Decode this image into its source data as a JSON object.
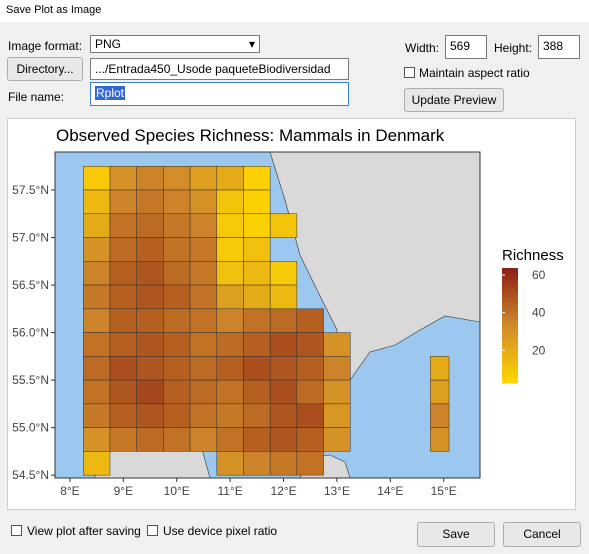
{
  "dialog": {
    "title": "Save Plot as Image",
    "image_format_label": "Image format:",
    "image_format": "PNG",
    "directory_button": "Directory...",
    "directory_path": ".../Entrada450_Usode paqueteBiodiversidad",
    "file_name_label": "File name:",
    "file_name": "Rplot",
    "width_label": "Width:",
    "width": 569,
    "height_label": "Height:",
    "height": 388,
    "maintain_aspect": "Maintain aspect ratio",
    "update_preview": "Update Preview",
    "view_after_saving": "View plot after saving",
    "device_pixel_ratio": "Use device pixel ratio",
    "save": "Save",
    "cancel": "Cancel"
  },
  "chart_data": {
    "type": "grid-map",
    "title": "Observed Species Richness: Mammals in Denmark",
    "legend_title": "Richness",
    "xlim": [
      7.72,
      15.68
    ],
    "ylim": [
      54.47,
      57.9
    ],
    "xticks": [
      {
        "value": 8,
        "label": "8°E"
      },
      {
        "value": 9,
        "label": "9°E"
      },
      {
        "value": 10,
        "label": "10°E"
      },
      {
        "value": 11,
        "label": "11°E"
      },
      {
        "value": 12,
        "label": "12°E"
      },
      {
        "value": 13,
        "label": "13°E"
      },
      {
        "value": 14,
        "label": "14°E"
      },
      {
        "value": 15,
        "label": "15°E"
      }
    ],
    "yticks": [
      {
        "value": 54.5,
        "label": "54.5°N"
      },
      {
        "value": 55,
        "label": "55.0°N"
      },
      {
        "value": 55.5,
        "label": "55.5°N"
      },
      {
        "value": 56,
        "label": "56.0°N"
      },
      {
        "value": 56.5,
        "label": "56.5°N"
      },
      {
        "value": 57,
        "label": "57.0°N"
      },
      {
        "value": 57.5,
        "label": "57.5°N"
      }
    ],
    "clim": [
      2.6,
      63.7
    ],
    "cticks": [
      20,
      40,
      60
    ],
    "colors": [
      "#ffd700",
      "#d08a2a",
      "#8b1e14"
    ],
    "lon_edges": [
      8.25,
      8.75,
      9.25,
      9.75,
      10.25,
      10.75,
      11.25,
      11.75,
      12.25,
      12.75,
      13.25,
      13.75,
      14.25,
      14.75,
      15.1
    ],
    "lat_edges": [
      57.75,
      57.5,
      57.25,
      57.0,
      56.75,
      56.5,
      56.25,
      56.0,
      55.75,
      55.5,
      55.25,
      55.0,
      54.75,
      54.5
    ],
    "values": [
      [
        8,
        30,
        35,
        32,
        25,
        20,
        5,
        null,
        null,
        null,
        null,
        null,
        null,
        null
      ],
      [
        15,
        35,
        38,
        35,
        30,
        10,
        5,
        null,
        null,
        null,
        null,
        null,
        null,
        null
      ],
      [
        20,
        40,
        42,
        38,
        35,
        8,
        5,
        10,
        null,
        null,
        null,
        null,
        null,
        null
      ],
      [
        30,
        42,
        45,
        40,
        38,
        8,
        12,
        null,
        null,
        null,
        null,
        null,
        null,
        null
      ],
      [
        35,
        45,
        48,
        42,
        38,
        12,
        15,
        8,
        null,
        null,
        null,
        null,
        null,
        null
      ],
      [
        38,
        45,
        48,
        45,
        40,
        25,
        20,
        15,
        null,
        null,
        null,
        null,
        null,
        null
      ],
      [
        35,
        45,
        45,
        42,
        40,
        35,
        40,
        42,
        45,
        null,
        null,
        null,
        null,
        null
      ],
      [
        40,
        45,
        48,
        45,
        40,
        42,
        45,
        50,
        48,
        30,
        null,
        null,
        null,
        null
      ],
      [
        42,
        50,
        48,
        45,
        42,
        45,
        50,
        48,
        45,
        35,
        null,
        null,
        null,
        20
      ],
      [
        40,
        48,
        52,
        45,
        42,
        40,
        45,
        50,
        42,
        30,
        null,
        null,
        null,
        25
      ],
      [
        38,
        45,
        48,
        45,
        40,
        38,
        42,
        48,
        50,
        28,
        null,
        null,
        null,
        35
      ],
      [
        30,
        38,
        42,
        40,
        35,
        40,
        45,
        48,
        45,
        30,
        null,
        null,
        null,
        30
      ],
      [
        15,
        null,
        null,
        null,
        null,
        30,
        35,
        38,
        40,
        null,
        null,
        null,
        null,
        null
      ]
    ]
  }
}
